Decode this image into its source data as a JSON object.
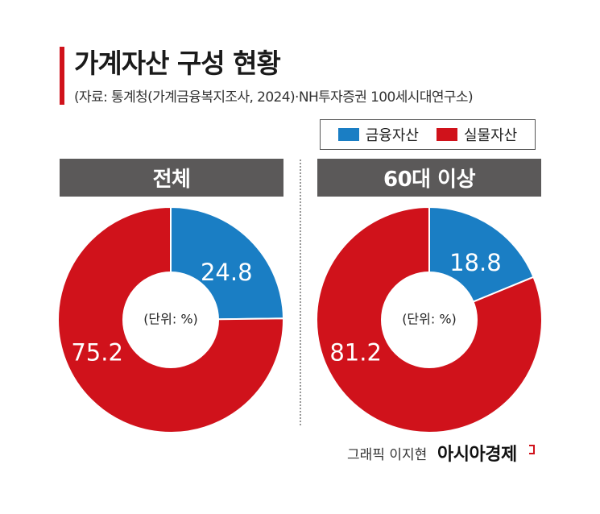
{
  "title": "가계자산 구성 현황",
  "subtitle": "(자료: 통계청(가계금융복지조사, 2024)·NH투자증권 100세시대연구소)",
  "legend": [
    {
      "label": "금융자산",
      "color": "#1a7ec4"
    },
    {
      "label": "실물자산",
      "color": "#d0121b"
    }
  ],
  "unit_label": "(단위: %)",
  "credit": "그래픽 이지현",
  "brand": "아시아경제",
  "chart_data": [
    {
      "type": "pie",
      "title": "전체",
      "categories": [
        "금융자산",
        "실물자산"
      ],
      "values": [
        24.8,
        75.2
      ],
      "labels": [
        "24.8",
        "75.2"
      ],
      "colors": [
        "#1a7ec4",
        "#d0121b"
      ]
    },
    {
      "type": "pie",
      "title": "60대 이상",
      "categories": [
        "금융자산",
        "실물자산"
      ],
      "values": [
        18.8,
        81.2
      ],
      "labels": [
        "18.8",
        "81.2"
      ],
      "colors": [
        "#1a7ec4",
        "#d0121b"
      ]
    }
  ]
}
